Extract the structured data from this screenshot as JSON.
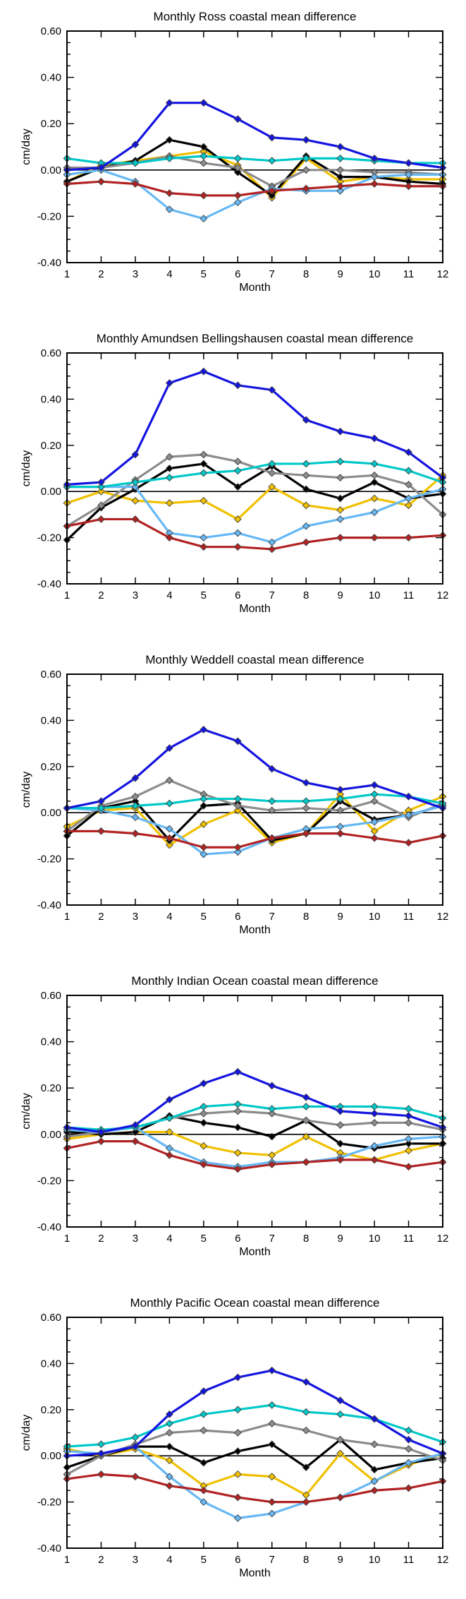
{
  "chart_data": [
    {
      "type": "line",
      "title": "Monthly Ross coastal mean difference",
      "xlabel": "Month",
      "ylabel": "cm/day",
      "x": [
        1,
        2,
        3,
        4,
        5,
        6,
        7,
        8,
        9,
        10,
        11,
        12
      ],
      "xticks": [
        "1",
        "2",
        "3",
        "4",
        "5",
        "6",
        "7",
        "8",
        "9",
        "10",
        "11",
        "12"
      ],
      "ylim": [
        -0.4,
        0.6
      ],
      "yticks": [
        "-0.40",
        "-0.20",
        "0.00",
        "0.20",
        "0.40",
        "0.60"
      ],
      "grid": false,
      "zero_line": true,
      "series": [
        {
          "color": "#f0c000",
          "values": [
            -0.05,
            0.02,
            0.04,
            0.06,
            0.08,
            0.02,
            -0.12,
            0.05,
            -0.05,
            -0.03,
            -0.04,
            -0.04
          ]
        },
        {
          "color": "#000000",
          "values": [
            -0.05,
            0.01,
            0.04,
            0.13,
            0.1,
            -0.01,
            -0.11,
            0.06,
            -0.03,
            -0.03,
            -0.05,
            -0.06
          ]
        },
        {
          "color": "#8c8c8c",
          "values": [
            0.01,
            0.01,
            0.03,
            0.06,
            0.03,
            0.01,
            -0.07,
            0.0,
            0.0,
            -0.01,
            -0.01,
            -0.02
          ]
        },
        {
          "color": "#66b8f5",
          "values": [
            -0.02,
            0.0,
            -0.05,
            -0.17,
            -0.21,
            -0.14,
            -0.08,
            -0.09,
            -0.09,
            -0.03,
            -0.02,
            -0.02
          ]
        },
        {
          "color": "#b22222",
          "values": [
            -0.06,
            -0.05,
            -0.06,
            -0.1,
            -0.11,
            -0.11,
            -0.09,
            -0.08,
            -0.07,
            -0.06,
            -0.07,
            -0.07
          ]
        },
        {
          "color": "#00c8c8",
          "values": [
            0.05,
            0.03,
            0.03,
            0.05,
            0.06,
            0.05,
            0.04,
            0.05,
            0.05,
            0.04,
            0.03,
            0.03
          ]
        },
        {
          "color": "#1414e0",
          "values": [
            0.0,
            0.01,
            0.11,
            0.29,
            0.29,
            0.22,
            0.14,
            0.13,
            0.1,
            0.05,
            0.03,
            0.01
          ]
        }
      ]
    },
    {
      "type": "line",
      "title": "Monthly Amundsen Bellingshausen coastal mean difference",
      "xlabel": "Month",
      "ylabel": "cm/day",
      "x": [
        1,
        2,
        3,
        4,
        5,
        6,
        7,
        8,
        9,
        10,
        11,
        12
      ],
      "xticks": [
        "1",
        "2",
        "3",
        "4",
        "5",
        "6",
        "7",
        "8",
        "9",
        "10",
        "11",
        "12"
      ],
      "ylim": [
        -0.4,
        0.6
      ],
      "yticks": [
        "-0.40",
        "-0.20",
        "0.00",
        "0.20",
        "0.40",
        "0.60"
      ],
      "grid": false,
      "zero_line": true,
      "series": [
        {
          "color": "#f0c000",
          "values": [
            -0.05,
            0.0,
            -0.04,
            -0.05,
            -0.04,
            -0.12,
            0.02,
            -0.06,
            -0.08,
            -0.03,
            -0.06,
            0.07
          ]
        },
        {
          "color": "#000000",
          "values": [
            -0.21,
            -0.07,
            0.01,
            0.1,
            0.12,
            0.02,
            0.11,
            0.01,
            -0.03,
            0.04,
            -0.03,
            -0.01
          ]
        },
        {
          "color": "#8c8c8c",
          "values": [
            -0.15,
            -0.06,
            0.05,
            0.15,
            0.16,
            0.13,
            0.08,
            0.07,
            0.06,
            0.07,
            0.03,
            -0.1
          ]
        },
        {
          "color": "#66b8f5",
          "values": [
            0.02,
            0.02,
            0.02,
            -0.18,
            -0.2,
            -0.18,
            -0.22,
            -0.15,
            -0.12,
            -0.09,
            -0.03,
            0.01
          ]
        },
        {
          "color": "#b22222",
          "values": [
            -0.15,
            -0.12,
            -0.12,
            -0.2,
            -0.24,
            -0.24,
            -0.25,
            -0.22,
            -0.2,
            -0.2,
            -0.2,
            -0.19
          ]
        },
        {
          "color": "#00c8c8",
          "values": [
            0.02,
            0.02,
            0.04,
            0.06,
            0.08,
            0.09,
            0.12,
            0.12,
            0.13,
            0.12,
            0.09,
            0.04
          ]
        },
        {
          "color": "#1414e0",
          "values": [
            0.03,
            0.04,
            0.16,
            0.47,
            0.52,
            0.46,
            0.44,
            0.31,
            0.26,
            0.23,
            0.17,
            0.06
          ]
        }
      ]
    },
    {
      "type": "line",
      "title": "Monthly Weddell coastal mean difference",
      "xlabel": "Month",
      "ylabel": "cm/day",
      "x": [
        1,
        2,
        3,
        4,
        5,
        6,
        7,
        8,
        9,
        10,
        11,
        12
      ],
      "xticks": [
        "1",
        "2",
        "3",
        "4",
        "5",
        "6",
        "7",
        "8",
        "9",
        "10",
        "11",
        "12"
      ],
      "ylim": [
        -0.4,
        0.6
      ],
      "yticks": [
        "-0.40",
        "-0.20",
        "0.00",
        "0.20",
        "0.40",
        "0.60"
      ],
      "grid": false,
      "zero_line": true,
      "series": [
        {
          "color": "#f0c000",
          "values": [
            -0.06,
            0.01,
            0.02,
            -0.14,
            -0.05,
            0.01,
            -0.13,
            -0.09,
            0.08,
            -0.08,
            0.01,
            0.07
          ]
        },
        {
          "color": "#000000",
          "values": [
            -0.1,
            0.02,
            0.05,
            -0.12,
            0.03,
            0.04,
            -0.12,
            -0.09,
            0.05,
            -0.03,
            -0.01,
            0.03
          ]
        },
        {
          "color": "#8c8c8c",
          "values": [
            -0.08,
            0.03,
            0.07,
            0.14,
            0.08,
            0.03,
            0.01,
            0.02,
            0.01,
            0.05,
            -0.02,
            0.04
          ]
        },
        {
          "color": "#66b8f5",
          "values": [
            0.02,
            0.01,
            -0.02,
            -0.07,
            -0.18,
            -0.17,
            -0.11,
            -0.07,
            -0.06,
            -0.04,
            -0.01,
            0.03
          ]
        },
        {
          "color": "#b22222",
          "values": [
            -0.08,
            -0.08,
            -0.09,
            -0.11,
            -0.15,
            -0.15,
            -0.11,
            -0.09,
            -0.09,
            -0.11,
            -0.13,
            -0.1
          ]
        },
        {
          "color": "#00c8c8",
          "values": [
            0.02,
            0.02,
            0.03,
            0.04,
            0.06,
            0.06,
            0.05,
            0.05,
            0.06,
            0.08,
            0.07,
            0.04
          ]
        },
        {
          "color": "#1414e0",
          "values": [
            0.02,
            0.05,
            0.15,
            0.28,
            0.36,
            0.31,
            0.19,
            0.13,
            0.1,
            0.12,
            0.07,
            0.02
          ]
        }
      ]
    },
    {
      "type": "line",
      "title": "Monthly Indian Ocean coastal mean difference",
      "xlabel": "Month",
      "ylabel": "cm/day",
      "x": [
        1,
        2,
        3,
        4,
        5,
        6,
        7,
        8,
        9,
        10,
        11,
        12
      ],
      "xticks": [
        "1",
        "2",
        "3",
        "4",
        "5",
        "6",
        "7",
        "8",
        "9",
        "10",
        "11",
        "12"
      ],
      "ylim": [
        -0.4,
        0.6
      ],
      "yticks": [
        "-0.40",
        "-0.20",
        "0.00",
        "0.20",
        "0.40",
        "0.60"
      ],
      "grid": false,
      "zero_line": true,
      "series": [
        {
          "color": "#f0c000",
          "values": [
            -0.02,
            0.0,
            0.01,
            0.01,
            -0.05,
            -0.08,
            -0.09,
            -0.01,
            -0.08,
            -0.11,
            -0.07,
            -0.04
          ]
        },
        {
          "color": "#000000",
          "values": [
            0.01,
            0.0,
            0.01,
            0.08,
            0.05,
            0.03,
            -0.01,
            0.06,
            -0.04,
            -0.06,
            -0.04,
            -0.04
          ]
        },
        {
          "color": "#8c8c8c",
          "values": [
            -0.01,
            0.01,
            0.03,
            0.07,
            0.09,
            0.1,
            0.09,
            0.06,
            0.04,
            0.05,
            0.05,
            0.02
          ]
        },
        {
          "color": "#66b8f5",
          "values": [
            0.02,
            0.01,
            0.03,
            -0.06,
            -0.12,
            -0.14,
            -0.12,
            -0.12,
            -0.1,
            -0.05,
            -0.02,
            -0.01
          ]
        },
        {
          "color": "#b22222",
          "values": [
            -0.06,
            -0.03,
            -0.03,
            -0.09,
            -0.13,
            -0.15,
            -0.13,
            -0.12,
            -0.11,
            -0.11,
            -0.14,
            -0.12
          ]
        },
        {
          "color": "#00c8c8",
          "values": [
            0.03,
            0.02,
            0.03,
            0.07,
            0.12,
            0.13,
            0.11,
            0.12,
            0.12,
            0.12,
            0.11,
            0.07
          ]
        },
        {
          "color": "#1414e0",
          "values": [
            0.03,
            0.01,
            0.04,
            0.15,
            0.22,
            0.27,
            0.21,
            0.16,
            0.1,
            0.09,
            0.08,
            0.03
          ]
        }
      ]
    },
    {
      "type": "line",
      "title": "Monthly Pacific Ocean coastal mean difference",
      "xlabel": "Month",
      "ylabel": "cm/day",
      "x": [
        1,
        2,
        3,
        4,
        5,
        6,
        7,
        8,
        9,
        10,
        11,
        12
      ],
      "xticks": [
        "1",
        "2",
        "3",
        "4",
        "5",
        "6",
        "7",
        "8",
        "9",
        "10",
        "11",
        "12"
      ],
      "ylim": [
        -0.4,
        0.6
      ],
      "yticks": [
        "-0.40",
        "-0.20",
        "0.00",
        "0.20",
        "0.40",
        "0.60"
      ],
      "grid": false,
      "zero_line": true,
      "series": [
        {
          "color": "#f0c000",
          "values": [
            0.03,
            0.0,
            0.03,
            -0.02,
            -0.13,
            -0.08,
            -0.09,
            -0.17,
            0.01,
            -0.11,
            -0.04,
            0.01
          ]
        },
        {
          "color": "#000000",
          "values": [
            -0.05,
            0.0,
            0.04,
            0.04,
            -0.03,
            0.02,
            0.05,
            -0.05,
            0.07,
            -0.06,
            -0.03,
            -0.01
          ]
        },
        {
          "color": "#8c8c8c",
          "values": [
            -0.08,
            0.0,
            0.05,
            0.1,
            0.11,
            0.1,
            0.14,
            0.11,
            0.07,
            0.05,
            0.03,
            -0.02
          ]
        },
        {
          "color": "#66b8f5",
          "values": [
            0.02,
            0.01,
            0.04,
            -0.09,
            -0.2,
            -0.27,
            -0.25,
            -0.2,
            -0.18,
            -0.11,
            -0.03,
            0.01
          ]
        },
        {
          "color": "#b22222",
          "values": [
            -0.1,
            -0.08,
            -0.09,
            -0.13,
            -0.15,
            -0.18,
            -0.2,
            -0.2,
            -0.18,
            -0.15,
            -0.14,
            -0.11
          ]
        },
        {
          "color": "#00c8c8",
          "values": [
            0.04,
            0.05,
            0.08,
            0.14,
            0.18,
            0.2,
            0.22,
            0.19,
            0.18,
            0.16,
            0.11,
            0.06
          ]
        },
        {
          "color": "#1414e0",
          "values": [
            0.0,
            0.01,
            0.04,
            0.18,
            0.28,
            0.34,
            0.37,
            0.32,
            0.24,
            0.16,
            0.07,
            0.01
          ]
        }
      ]
    }
  ]
}
